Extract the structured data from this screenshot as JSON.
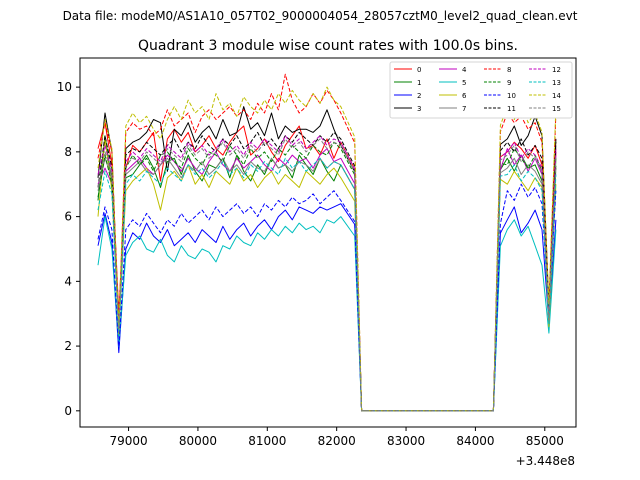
{
  "suptitle": "Data file: modeM0/AS1A10_057T02_9000004054_28057cztM0_level2_quad_clean.evt",
  "chart_data": {
    "type": "line",
    "title": "Quadrant 3 module wise count rates with 100.0s bins.",
    "xlabel": "",
    "ylabel": "",
    "x_offset_label": "+3.448e8",
    "xlim": [
      78300,
      85450
    ],
    "ylim": [
      -0.5,
      10.9
    ],
    "x_ticks": [
      79000,
      80000,
      81000,
      82000,
      83000,
      84000,
      85000
    ],
    "x_tick_labels": [
      "79000",
      "80000",
      "81000",
      "82000",
      "83000",
      "84000",
      "85000"
    ],
    "y_ticks": [
      0,
      2,
      4,
      6,
      8,
      10
    ],
    "y_tick_labels": [
      "0",
      "2",
      "4",
      "6",
      "8",
      "10"
    ],
    "grid": false,
    "legend_position": "top-right",
    "segments": [
      {
        "x0": 78560,
        "n": 36,
        "dx": 100
      },
      {
        "x0": 82260,
        "n": 3,
        "dx": 100
      },
      {
        "x0": 82360,
        "n": 20,
        "dx": 100
      },
      {
        "x0": 84260,
        "n": 10,
        "dx": 100
      }
    ],
    "series": [
      {
        "name": "0",
        "color": "#ff0000",
        "dash": false,
        "base": 8.0,
        "low": 2.4,
        "pattern": [
          8.1,
          8.9,
          7.6,
          3.0,
          7.5,
          8.2,
          8.0,
          8.3,
          8.6,
          7.1,
          8.4,
          8.7,
          8.3,
          8.6,
          8.0,
          8.2,
          8.5,
          8.1,
          7.9,
          8.3,
          8.6,
          8.8,
          7.9,
          8.1,
          8.4,
          8.0,
          7.7,
          8.2,
          8.5,
          8.8,
          8.1,
          8.2,
          7.9,
          8.4,
          7.8,
          8.3
        ],
        "tail": [
          8.0,
          8.3,
          8.1,
          7.8,
          8.2,
          7.6,
          3.1
        ]
      },
      {
        "name": "1",
        "color": "#008000",
        "dash": false,
        "base": 7.6,
        "low": 2.2,
        "pattern": [
          6.5,
          8.5,
          7.1,
          2.6,
          7.2,
          7.3,
          7.6,
          7.9,
          7.5,
          6.9,
          7.7,
          7.8,
          7.3,
          7.9,
          7.4,
          7.1,
          7.6,
          7.5,
          7.8,
          7.2,
          7.9,
          7.4,
          7.1,
          7.6,
          7.3,
          7.8,
          7.5,
          7.6,
          7.2,
          7.9,
          7.6,
          7.3,
          7.8,
          7.4,
          7.1,
          7.6
        ],
        "tail": [
          7.8,
          7.4,
          7.9,
          7.5,
          7.6,
          7.1,
          2.9
        ]
      },
      {
        "name": "2",
        "color": "#0000ff",
        "dash": false,
        "base": 5.6,
        "low": 1.8,
        "pattern": [
          5.1,
          6.1,
          5.2,
          1.8,
          5.0,
          5.5,
          5.3,
          5.8,
          5.4,
          5.2,
          5.6,
          5.1,
          5.3,
          5.5,
          5.2,
          5.6,
          5.4,
          5.2,
          5.7,
          5.3,
          5.6,
          5.8,
          5.4,
          5.7,
          5.9,
          5.6,
          6.0,
          6.2,
          5.9,
          6.3,
          6.2,
          6.1,
          6.3,
          6.2,
          6.3,
          6.4
        ],
        "tail": [
          5.9,
          6.3,
          5.5,
          5.8,
          6.2,
          5.6,
          2.7
        ]
      },
      {
        "name": "3",
        "color": "#000000",
        "dash": false,
        "base": 8.4,
        "low": 2.3,
        "pattern": [
          7.2,
          9.2,
          8.0,
          2.4,
          8.1,
          8.3,
          8.4,
          8.6,
          9.0,
          8.9,
          7.4,
          8.7,
          8.5,
          8.9,
          8.3,
          8.6,
          8.8,
          8.4,
          9.0,
          8.5,
          8.6,
          9.4,
          8.7,
          8.9,
          8.5,
          9.2,
          8.4,
          8.8,
          8.6,
          8.7,
          8.7,
          8.6,
          8.8,
          9.3,
          8.7,
          8.2
        ],
        "tail": [
          8.4,
          8.8,
          8.2,
          8.5,
          9.1,
          8.5,
          3.2
        ]
      },
      {
        "name": "4",
        "color": "#bf00bf",
        "dash": false,
        "base": 7.6,
        "low": 2.3,
        "pattern": [
          7.0,
          7.5,
          7.0,
          2.5,
          7.4,
          7.6,
          7.8,
          7.5,
          7.3,
          7.6,
          7.9,
          7.7,
          7.4,
          7.8,
          7.5,
          7.3,
          7.7,
          8.0,
          7.6,
          7.4,
          7.8,
          7.5,
          7.7,
          7.9,
          7.6,
          7.4,
          7.8,
          7.6,
          7.9,
          7.7,
          7.8,
          7.5,
          7.9,
          8.1,
          7.7,
          7.8
        ],
        "tail": [
          8.1,
          7.6,
          7.9,
          7.4,
          7.8,
          7.3,
          2.8
        ]
      },
      {
        "name": "5",
        "color": "#00bfbf",
        "dash": false,
        "base": 5.2,
        "low": 2.0,
        "pattern": [
          4.5,
          6.0,
          5.0,
          2.0,
          4.8,
          5.2,
          5.4,
          5.0,
          4.9,
          5.3,
          4.8,
          4.6,
          5.1,
          4.8,
          4.7,
          5.0,
          4.9,
          4.6,
          5.1,
          5.0,
          5.4,
          5.2,
          5.1,
          5.5,
          5.3,
          5.6,
          5.4,
          5.7,
          5.5,
          5.8,
          5.6,
          5.7,
          5.5,
          5.9,
          5.8,
          6.0
        ],
        "tail": [
          5.6,
          5.9,
          5.4,
          5.7,
          5.1,
          4.5,
          2.4
        ]
      },
      {
        "name": "6",
        "color": "#bfbf00",
        "dash": false,
        "base": 7.3,
        "low": 2.2,
        "pattern": [
          6.0,
          8.4,
          6.8,
          2.3,
          6.8,
          7.1,
          7.3,
          7.5,
          7.0,
          6.2,
          7.2,
          7.4,
          7.1,
          7.6,
          7.0,
          7.3,
          6.9,
          7.4,
          7.2,
          7.0,
          7.5,
          7.1,
          7.3,
          6.9,
          7.2,
          7.4,
          7.0,
          7.3,
          7.1,
          6.9,
          7.4,
          7.2,
          7.0,
          7.3,
          7.5,
          7.2
        ],
        "tail": [
          7.0,
          7.4,
          7.1,
          6.8,
          7.2,
          6.9,
          2.6
        ]
      },
      {
        "name": "7",
        "color": "#808080",
        "dash": false,
        "base": 7.5,
        "low": 2.2,
        "pattern": [
          6.8,
          7.8,
          7.2,
          2.5,
          7.3,
          7.5,
          7.7,
          7.4,
          7.3,
          7.6,
          7.8,
          7.5,
          7.2,
          7.6,
          7.4,
          7.7,
          7.3,
          7.5,
          7.8,
          7.4,
          7.6,
          7.3,
          7.7,
          7.5,
          7.4,
          7.8,
          7.5,
          7.6,
          7.4,
          7.7,
          7.6,
          7.4,
          7.8,
          7.5,
          7.7,
          7.6
        ],
        "tail": [
          7.5,
          7.8,
          7.3,
          7.6,
          7.4,
          7.0,
          2.7
        ]
      },
      {
        "name": "8",
        "color": "#ff0000",
        "dash": true,
        "base": 8.8,
        "low": 2.4,
        "pattern": [
          7.8,
          8.9,
          8.0,
          2.5,
          8.6,
          8.9,
          8.7,
          8.8,
          8.5,
          8.7,
          9.3,
          8.8,
          9.0,
          9.2,
          8.6,
          9.1,
          9.3,
          9.0,
          9.2,
          9.4,
          9.1,
          9.3,
          9.0,
          9.5,
          9.2,
          9.8,
          9.3,
          10.4,
          9.6,
          9.2,
          9.4,
          9.8,
          9.5,
          9.9,
          9.6,
          9.2
        ],
        "tail": [
          9.2,
          8.9,
          9.1,
          8.7,
          8.9,
          8.3,
          3.2
        ]
      },
      {
        "name": "9",
        "color": "#008000",
        "dash": true,
        "base": 7.8,
        "low": 2.3,
        "pattern": [
          6.6,
          7.9,
          7.0,
          2.6,
          7.5,
          7.9,
          7.6,
          7.8,
          7.4,
          7.9,
          8.0,
          7.7,
          7.5,
          8.1,
          7.8,
          7.6,
          8.0,
          7.9,
          7.7,
          8.2,
          7.9,
          7.6,
          8.1,
          7.8,
          8.0,
          7.7,
          8.1,
          7.9,
          8.2,
          8.0,
          7.8,
          8.2,
          8.0,
          7.9,
          8.3,
          8.1
        ],
        "tail": [
          7.6,
          8.1,
          7.8,
          7.5,
          7.9,
          7.4,
          2.9
        ]
      },
      {
        "name": "10",
        "color": "#0000ff",
        "dash": true,
        "base": 5.9,
        "low": 1.9,
        "pattern": [
          5.3,
          6.3,
          5.6,
          1.9,
          5.6,
          5.9,
          5.7,
          6.1,
          5.8,
          5.5,
          5.9,
          5.7,
          6.1,
          5.8,
          6.0,
          6.2,
          5.9,
          6.3,
          6.0,
          6.2,
          6.4,
          6.1,
          6.3,
          6.0,
          6.4,
          6.2,
          6.5,
          6.3,
          6.6,
          6.4,
          6.5,
          6.7,
          6.4,
          6.6,
          6.8,
          6.5
        ],
        "tail": [
          6.8,
          6.5,
          7.0,
          6.6,
          6.9,
          6.4,
          3.0
        ]
      },
      {
        "name": "11",
        "color": "#000000",
        "dash": true,
        "base": 8.2,
        "low": 2.3,
        "pattern": [
          6.9,
          8.5,
          7.5,
          2.4,
          7.9,
          8.1,
          8.0,
          8.3,
          8.1,
          7.9,
          8.2,
          8.4,
          8.0,
          8.3,
          8.1,
          8.5,
          8.2,
          8.0,
          8.4,
          8.2,
          8.5,
          8.1,
          8.3,
          8.6,
          8.2,
          8.4,
          8.1,
          8.5,
          8.3,
          8.6,
          8.4,
          8.2,
          8.5,
          8.3,
          8.6,
          8.4
        ],
        "tail": [
          8.3,
          8.0,
          8.4,
          7.9,
          8.2,
          7.8,
          3.0
        ]
      },
      {
        "name": "12",
        "color": "#bf00bf",
        "dash": true,
        "base": 8.0,
        "low": 2.4,
        "pattern": [
          7.3,
          8.2,
          7.4,
          2.5,
          7.7,
          8.0,
          7.8,
          8.1,
          7.9,
          7.7,
          8.2,
          8.0,
          7.8,
          8.3,
          8.0,
          8.2,
          7.9,
          8.1,
          8.4,
          8.0,
          8.2,
          7.9,
          8.3,
          8.1,
          8.4,
          8.2,
          8.0,
          8.5,
          8.2,
          8.4,
          8.1,
          8.3,
          8.5,
          8.2,
          8.4,
          8.3
        ],
        "tail": [
          8.0,
          8.3,
          7.8,
          8.1,
          7.9,
          7.5,
          2.9
        ]
      },
      {
        "name": "13",
        "color": "#00bfbf",
        "dash": true,
        "base": 7.4,
        "low": 2.2,
        "pattern": [
          6.2,
          7.4,
          6.7,
          2.3,
          7.0,
          7.3,
          7.1,
          7.4,
          7.2,
          7.0,
          7.5,
          7.3,
          7.1,
          7.6,
          7.3,
          7.5,
          7.2,
          7.4,
          7.7,
          7.3,
          7.5,
          7.2,
          7.6,
          7.4,
          7.7,
          7.5,
          7.3,
          7.8,
          7.5,
          7.7,
          7.4,
          7.6,
          7.8,
          7.5,
          7.7,
          7.6
        ],
        "tail": [
          7.3,
          7.6,
          7.1,
          7.4,
          7.2,
          6.8,
          2.7
        ]
      },
      {
        "name": "14",
        "color": "#bfbf00",
        "dash": true,
        "base": 9.0,
        "low": 2.5,
        "pattern": [
          7.5,
          9.0,
          8.1,
          2.6,
          8.8,
          9.2,
          8.9,
          9.1,
          8.7,
          8.4,
          9.0,
          9.4,
          9.0,
          9.6,
          9.2,
          9.4,
          9.0,
          9.8,
          9.3,
          9.5,
          9.1,
          9.7,
          9.4,
          9.2,
          9.6,
          9.3,
          9.8,
          9.5,
          9.9,
          9.6,
          9.4,
          9.8,
          9.5,
          10.0,
          9.6,
          9.4
        ],
        "tail": [
          9.4,
          9.0,
          9.5,
          8.9,
          9.2,
          8.6,
          3.3
        ]
      },
      {
        "name": "15",
        "color": "#808080",
        "dash": true,
        "base": 7.9,
        "low": 2.3,
        "pattern": [
          6.9,
          8.0,
          7.3,
          2.4,
          7.6,
          7.8,
          7.7,
          8.0,
          7.8,
          7.6,
          8.1,
          7.9,
          7.7,
          8.2,
          7.9,
          8.1,
          7.8,
          8.0,
          8.3,
          7.9,
          8.1,
          7.8,
          8.2,
          8.0,
          8.3,
          8.1,
          7.9,
          8.4,
          8.1,
          8.3,
          8.0,
          8.2,
          8.4,
          8.1,
          8.3,
          8.2
        ],
        "tail": [
          7.9,
          8.2,
          7.7,
          8.0,
          7.8,
          7.4,
          2.8
        ]
      }
    ]
  }
}
